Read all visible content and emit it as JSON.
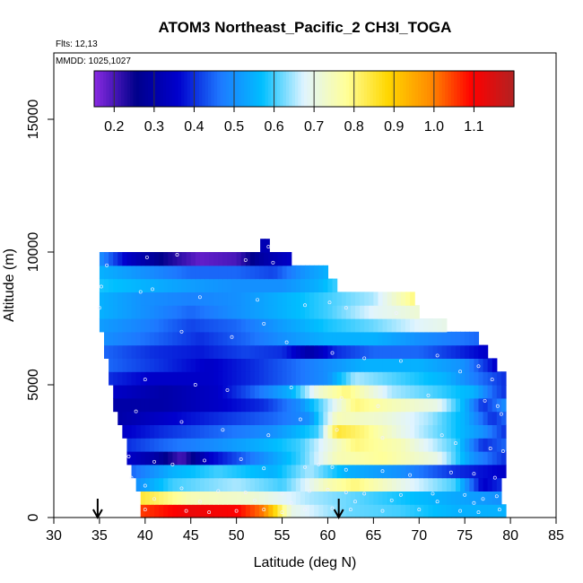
{
  "chart_data": {
    "type": "heatmap",
    "title": "ATOM3 Northeast_Pacific_2 CH3I_TOGA",
    "annotations": {
      "flights": "Flts: 12,13",
      "dates": "MMDD: 1025,1027"
    },
    "xlabel": "Latitude (deg N)",
    "ylabel": "Altitude (m)",
    "xlim": [
      30,
      85
    ],
    "ylim": [
      0,
      17500
    ],
    "x_ticks": [
      "30",
      "35",
      "40",
      "45",
      "50",
      "55",
      "60",
      "65",
      "70",
      "75",
      "80",
      "85"
    ],
    "y_ticks": [
      "0",
      "5000",
      "10000",
      "15000"
    ],
    "colorbar": {
      "ticks": [
        "0.2",
        "0.3",
        "0.4",
        "0.5",
        "0.6",
        "0.7",
        "0.8",
        "0.9",
        "1.0",
        "1.1"
      ],
      "range": [
        0.15,
        1.2
      ],
      "colors": [
        "#8a2be2",
        "#00008b",
        "#0000cd",
        "#1e78ff",
        "#00bfff",
        "#e0f4ff",
        "#ffff99",
        "#ffd700",
        "#ff8c00",
        "#ff0000",
        "#b22222"
      ]
    },
    "arrows_at_latitude": [
      34.8,
      61.2
    ],
    "layers": [
      {
        "alt": 250,
        "lat_start": 39.5,
        "lat_end": 79.5,
        "stops": [
          [
            39.5,
            1.05
          ],
          [
            45,
            1.12
          ],
          [
            50,
            1.1
          ],
          [
            53,
            1.0
          ],
          [
            56,
            0.7
          ],
          [
            62,
            0.62
          ],
          [
            68,
            0.6
          ],
          [
            74,
            0.55
          ],
          [
            79.5,
            0.55
          ]
        ]
      },
      {
        "alt": 750,
        "lat_start": 39.5,
        "lat_end": 79.0,
        "stops": [
          [
            39.5,
            0.85
          ],
          [
            45,
            0.75
          ],
          [
            52,
            0.72
          ],
          [
            58,
            0.65
          ],
          [
            65,
            0.6
          ],
          [
            72,
            0.55
          ],
          [
            79,
            0.5
          ]
        ]
      },
      {
        "alt": 1250,
        "lat_start": 39.0,
        "lat_end": 79.0,
        "stops": [
          [
            39,
            0.5
          ],
          [
            43,
            0.6
          ],
          [
            50,
            0.65
          ],
          [
            55,
            0.6
          ],
          [
            60,
            0.75
          ],
          [
            63,
            0.8
          ],
          [
            68,
            0.7
          ],
          [
            74,
            0.6
          ],
          [
            77,
            0.35
          ],
          [
            79,
            0.4
          ]
        ]
      },
      {
        "alt": 1750,
        "lat_start": 38.5,
        "lat_end": 79.5,
        "stops": [
          [
            38.5,
            0.45
          ],
          [
            43,
            0.55
          ],
          [
            48,
            0.6
          ],
          [
            54,
            0.55
          ],
          [
            58,
            0.65
          ],
          [
            62,
            0.55
          ],
          [
            68,
            0.5
          ],
          [
            74,
            0.4
          ],
          [
            79.5,
            0.35
          ]
        ]
      },
      {
        "alt": 2250,
        "lat_start": 38.0,
        "lat_end": 79.5,
        "stops": [
          [
            38,
            0.35
          ],
          [
            41,
            0.3
          ],
          [
            44,
            0.2
          ],
          [
            47,
            0.35
          ],
          [
            53,
            0.5
          ],
          [
            57,
            0.6
          ],
          [
            61,
            0.75
          ],
          [
            66,
            0.78
          ],
          [
            72,
            0.7
          ],
          [
            76,
            0.5
          ],
          [
            79.5,
            0.4
          ]
        ]
      },
      {
        "alt": 2750,
        "lat_start": 38.0,
        "lat_end": 79.5,
        "stops": [
          [
            38,
            0.4
          ],
          [
            42,
            0.45
          ],
          [
            48,
            0.5
          ],
          [
            53,
            0.55
          ],
          [
            57,
            0.6
          ],
          [
            60,
            0.7
          ],
          [
            63,
            0.8
          ],
          [
            68,
            0.75
          ],
          [
            74,
            0.6
          ],
          [
            77,
            0.4
          ],
          [
            79.5,
            0.45
          ]
        ]
      },
      {
        "alt": 3250,
        "lat_start": 37.5,
        "lat_end": 79.5,
        "stops": [
          [
            37.5,
            0.35
          ],
          [
            42,
            0.4
          ],
          [
            48,
            0.45
          ],
          [
            54,
            0.5
          ],
          [
            59,
            0.6
          ],
          [
            61,
            0.85
          ],
          [
            64,
            0.8
          ],
          [
            68,
            0.7
          ],
          [
            73,
            0.6
          ],
          [
            77,
            0.5
          ],
          [
            79.5,
            0.4
          ]
        ]
      },
      {
        "alt": 3750,
        "lat_start": 37.0,
        "lat_end": 79.5,
        "stops": [
          [
            37,
            0.3
          ],
          [
            42,
            0.35
          ],
          [
            48,
            0.4
          ],
          [
            54,
            0.45
          ],
          [
            58,
            0.5
          ],
          [
            61,
            0.75
          ],
          [
            66,
            0.72
          ],
          [
            71,
            0.65
          ],
          [
            75,
            0.55
          ],
          [
            78,
            0.4
          ],
          [
            79.5,
            0.45
          ]
        ]
      },
      {
        "alt": 4250,
        "lat_start": 36.5,
        "lat_end": 79.5,
        "stops": [
          [
            36.5,
            0.3
          ],
          [
            42,
            0.3
          ],
          [
            48,
            0.35
          ],
          [
            53,
            0.4
          ],
          [
            57,
            0.5
          ],
          [
            60,
            0.65
          ],
          [
            63,
            0.8
          ],
          [
            67,
            0.75
          ],
          [
            72,
            0.7
          ],
          [
            75,
            0.55
          ],
          [
            77,
            0.4
          ],
          [
            79.5,
            0.5
          ]
        ]
      },
      {
        "alt": 4750,
        "lat_start": 36.5,
        "lat_end": 79.5,
        "stops": [
          [
            36.5,
            0.35
          ],
          [
            42,
            0.3
          ],
          [
            48,
            0.35
          ],
          [
            52,
            0.45
          ],
          [
            56,
            0.55
          ],
          [
            59,
            0.72
          ],
          [
            62,
            0.8
          ],
          [
            67,
            0.65
          ],
          [
            72,
            0.6
          ],
          [
            76,
            0.55
          ],
          [
            78,
            0.45
          ],
          [
            79.5,
            0.4
          ]
        ]
      },
      {
        "alt": 5250,
        "lat_start": 36.0,
        "lat_end": 79.5,
        "stops": [
          [
            36,
            0.4
          ],
          [
            41,
            0.35
          ],
          [
            47,
            0.35
          ],
          [
            52,
            0.4
          ],
          [
            56,
            0.45
          ],
          [
            60,
            0.5
          ],
          [
            63,
            0.65
          ],
          [
            68,
            0.6
          ],
          [
            73,
            0.55
          ],
          [
            77,
            0.45
          ],
          [
            79.5,
            0.4
          ]
        ]
      },
      {
        "alt": 5750,
        "lat_start": 36.0,
        "lat_end": 78.5,
        "stops": [
          [
            36,
            0.45
          ],
          [
            42,
            0.4
          ],
          [
            47,
            0.35
          ],
          [
            52,
            0.4
          ],
          [
            56,
            0.45
          ],
          [
            60,
            0.5
          ],
          [
            64,
            0.55
          ],
          [
            70,
            0.55
          ],
          [
            75,
            0.5
          ],
          [
            78.5,
            0.35
          ]
        ]
      },
      {
        "alt": 6250,
        "lat_start": 35.5,
        "lat_end": 77.5,
        "stops": [
          [
            35.5,
            0.45
          ],
          [
            41,
            0.4
          ],
          [
            46,
            0.38
          ],
          [
            51,
            0.42
          ],
          [
            55,
            0.4
          ],
          [
            58,
            0.3
          ],
          [
            61,
            0.4
          ],
          [
            65,
            0.45
          ],
          [
            70,
            0.45
          ],
          [
            74,
            0.4
          ],
          [
            77.5,
            0.35
          ]
        ]
      },
      {
        "alt": 6750,
        "lat_start": 35.5,
        "lat_end": 76.5,
        "stops": [
          [
            35.5,
            0.5
          ],
          [
            41,
            0.45
          ],
          [
            46,
            0.4
          ],
          [
            51,
            0.45
          ],
          [
            55,
            0.5
          ],
          [
            60,
            0.55
          ],
          [
            65,
            0.55
          ],
          [
            70,
            0.5
          ],
          [
            76.5,
            0.45
          ]
        ]
      },
      {
        "alt": 7250,
        "lat_start": 35.0,
        "lat_end": 73.0,
        "stops": [
          [
            35,
            0.52
          ],
          [
            40,
            0.48
          ],
          [
            45,
            0.42
          ],
          [
            50,
            0.45
          ],
          [
            55,
            0.52
          ],
          [
            60,
            0.58
          ],
          [
            65,
            0.62
          ],
          [
            70,
            0.68
          ],
          [
            73,
            0.7
          ]
        ]
      },
      {
        "alt": 7750,
        "lat_start": 35.0,
        "lat_end": 70.0,
        "stops": [
          [
            35,
            0.55
          ],
          [
            40,
            0.5
          ],
          [
            45,
            0.45
          ],
          [
            50,
            0.5
          ],
          [
            55,
            0.55
          ],
          [
            60,
            0.6
          ],
          [
            65,
            0.68
          ],
          [
            70,
            0.72
          ]
        ]
      },
      {
        "alt": 8250,
        "lat_start": 35.0,
        "lat_end": 69.5,
        "stops": [
          [
            35,
            0.55
          ],
          [
            40,
            0.5
          ],
          [
            45,
            0.48
          ],
          [
            50,
            0.5
          ],
          [
            55,
            0.55
          ],
          [
            60,
            0.6
          ],
          [
            65,
            0.65
          ],
          [
            68,
            0.75
          ],
          [
            69.5,
            0.8
          ]
        ]
      },
      {
        "alt": 8750,
        "lat_start": 35.0,
        "lat_end": 61.0,
        "stops": [
          [
            35,
            0.58
          ],
          [
            40,
            0.55
          ],
          [
            45,
            0.52
          ],
          [
            50,
            0.5
          ],
          [
            55,
            0.5
          ],
          [
            59,
            0.55
          ],
          [
            61,
            0.6
          ]
        ]
      },
      {
        "alt": 9250,
        "lat_start": 35.0,
        "lat_end": 60.0,
        "stops": [
          [
            35,
            0.55
          ],
          [
            40,
            0.5
          ],
          [
            45,
            0.45
          ],
          [
            50,
            0.45
          ],
          [
            54,
            0.42
          ],
          [
            57,
            0.5
          ],
          [
            60,
            0.55
          ]
        ]
      },
      {
        "alt": 9750,
        "lat_start": 35.0,
        "lat_end": 56.0,
        "stops": [
          [
            35,
            0.5
          ],
          [
            38,
            0.35
          ],
          [
            42,
            0.25
          ],
          [
            46,
            0.18
          ],
          [
            50,
            0.2
          ],
          [
            53,
            0.3
          ],
          [
            56,
            0.35
          ]
        ]
      },
      {
        "alt": 10250,
        "lat_start": 52.6,
        "lat_end": 53.6,
        "stops": [
          [
            52.6,
            0.32
          ],
          [
            53.6,
            0.32
          ]
        ]
      }
    ],
    "samples": [
      [
        35.8,
        9500
      ],
      [
        40.2,
        9800
      ],
      [
        43.5,
        9900
      ],
      [
        51.0,
        9700
      ],
      [
        53.5,
        10200
      ],
      [
        54.0,
        9600
      ],
      [
        35.2,
        8700
      ],
      [
        39.5,
        8500
      ],
      [
        40.8,
        8600
      ],
      [
        46.0,
        8300
      ],
      [
        52.3,
        8200
      ],
      [
        57.5,
        8000
      ],
      [
        60.2,
        8100
      ],
      [
        62.0,
        7900
      ],
      [
        67.5,
        7700
      ],
      [
        35.0,
        7900
      ],
      [
        44.0,
        7000
      ],
      [
        49.5,
        6800
      ],
      [
        53.0,
        7300
      ],
      [
        55.5,
        6600
      ],
      [
        60.5,
        6200
      ],
      [
        64.0,
        6000
      ],
      [
        68.0,
        5900
      ],
      [
        72.0,
        6100
      ],
      [
        74.5,
        5500
      ],
      [
        76.5,
        5700
      ],
      [
        78.0,
        5200
      ],
      [
        40.0,
        5200
      ],
      [
        45.5,
        5000
      ],
      [
        49.0,
        4800
      ],
      [
        56.0,
        4900
      ],
      [
        61.5,
        4500
      ],
      [
        65.5,
        4200
      ],
      [
        71.0,
        4600
      ],
      [
        77.2,
        4400
      ],
      [
        78.6,
        4200
      ],
      [
        79.0,
        3900
      ],
      [
        39.0,
        4000
      ],
      [
        44.0,
        3600
      ],
      [
        48.5,
        3300
      ],
      [
        53.5,
        3100
      ],
      [
        57.0,
        3700
      ],
      [
        61.0,
        3300
      ],
      [
        66.0,
        3000
      ],
      [
        72.5,
        3100
      ],
      [
        74.0,
        2800
      ],
      [
        77.8,
        2600
      ],
      [
        79.2,
        2500
      ],
      [
        38.2,
        2300
      ],
      [
        41.0,
        2100
      ],
      [
        43.0,
        2000
      ],
      [
        46.5,
        2150
      ],
      [
        50.5,
        2200
      ],
      [
        53.0,
        1850
      ],
      [
        57.5,
        1900
      ],
      [
        59.0,
        2000
      ],
      [
        60.5,
        1900
      ],
      [
        62.0,
        1800
      ],
      [
        66.0,
        1750
      ],
      [
        69.0,
        1600
      ],
      [
        73.5,
        1700
      ],
      [
        76.0,
        1650
      ],
      [
        78.3,
        1500
      ],
      [
        38.5,
        1500
      ],
      [
        40.0,
        1200
      ],
      [
        44.0,
        1100
      ],
      [
        48.0,
        1000
      ],
      [
        51.0,
        950
      ],
      [
        55.0,
        900
      ],
      [
        58.0,
        1000
      ],
      [
        60.0,
        1050
      ],
      [
        62.0,
        950
      ],
      [
        64.0,
        900
      ],
      [
        68.0,
        850
      ],
      [
        71.5,
        900
      ],
      [
        75.0,
        850
      ],
      [
        77.0,
        700
      ],
      [
        78.5,
        800
      ],
      [
        40.0,
        300
      ],
      [
        44.5,
        250
      ],
      [
        47.0,
        200
      ],
      [
        50.0,
        250
      ],
      [
        53.0,
        300
      ],
      [
        55.0,
        200
      ],
      [
        57.5,
        300
      ],
      [
        60.5,
        350
      ],
      [
        62.5,
        300
      ],
      [
        66.0,
        250
      ],
      [
        70.0,
        300
      ],
      [
        74.5,
        250
      ],
      [
        76.5,
        200
      ],
      [
        78.8,
        300
      ],
      [
        41.0,
        700
      ],
      [
        46.0,
        600
      ],
      [
        52.0,
        650
      ],
      [
        56.0,
        550
      ],
      [
        63.0,
        600
      ],
      [
        67.0,
        650
      ],
      [
        72.0,
        600
      ],
      [
        76.0,
        550
      ]
    ]
  }
}
